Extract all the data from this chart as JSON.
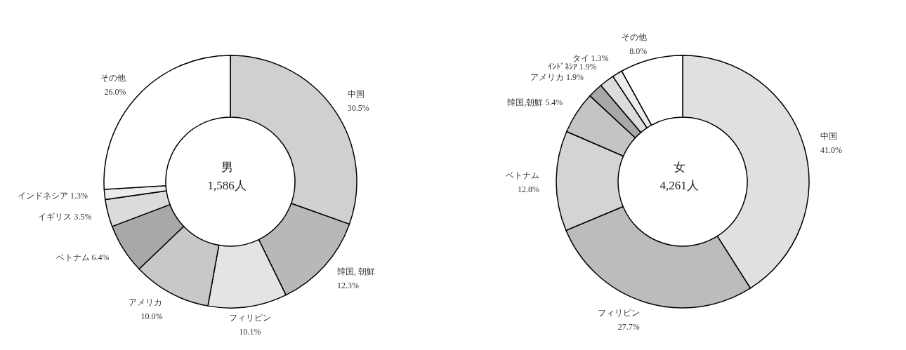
{
  "chart_data": [
    {
      "type": "donut",
      "categories": [
        "中国",
        "韓国, 朝鮮",
        "フィリピン",
        "アメリカ",
        "ベトナム",
        "イギリス",
        "インドネシア",
        "その他"
      ],
      "values": [
        30.5,
        12.3,
        10.1,
        10.0,
        6.4,
        3.5,
        1.3,
        26.0
      ],
      "value_labels": [
        "30.5%",
        "12.3%",
        "10.1%",
        "10.0%",
        "6.4%",
        "3.5%",
        "1.3%",
        "26.0%"
      ],
      "colors": [
        "#d0d0d0",
        "#b8b8b8",
        "#e4e4e4",
        "#c8c8c8",
        "#a8a8a8",
        "#dcdcdc",
        "#ececec",
        "#ffffff"
      ],
      "annotations": [
        "男",
        "1,586人"
      ]
    },
    {
      "type": "donut",
      "categories": [
        "中国",
        "フィリピン",
        "ベトナム",
        "韓国,朝鮮",
        "アメリカ",
        "ｲﾝﾄﾞﾈｼｱ",
        "タイ",
        "その他"
      ],
      "values": [
        41.0,
        27.7,
        12.8,
        5.4,
        1.9,
        1.9,
        1.3,
        8.0
      ],
      "value_labels": [
        "41.0%",
        "27.7%",
        "12.8%",
        "5.4%",
        "1.9%",
        "1.9%",
        "1.3%",
        "8.0%"
      ],
      "colors": [
        "#e0e0e0",
        "#bcbcbc",
        "#d4d4d4",
        "#c4c4c4",
        "#a8a8a8",
        "#dcdcdc",
        "#ececec",
        "#ffffff"
      ],
      "annotations": [
        "女",
        "4,261人"
      ]
    }
  ]
}
